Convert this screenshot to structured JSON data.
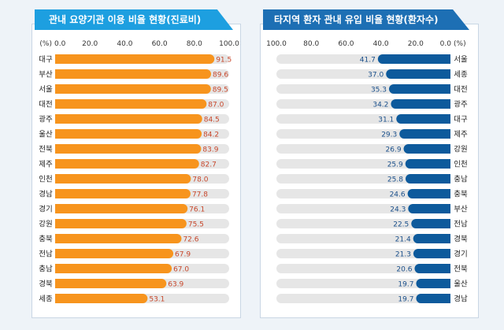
{
  "chart_data": [
    {
      "type": "bar",
      "orientation": "horizontal",
      "title": "관내 요양기관 이용 비율 현황(진료비)",
      "unit_label": "(%)",
      "xlim": [
        0,
        100
      ],
      "ticks": [
        "0.0",
        "20.0",
        "40.0",
        "60.0",
        "80.0",
        "100.0"
      ],
      "tick_values": [
        0,
        20,
        40,
        60,
        80,
        100
      ],
      "categories": [
        "대구",
        "부산",
        "서울",
        "대전",
        "광주",
        "울산",
        "전북",
        "제주",
        "인천",
        "경남",
        "경기",
        "강원",
        "충북",
        "전남",
        "충남",
        "경북",
        "세종"
      ],
      "values": [
        91.5,
        89.6,
        89.5,
        87.0,
        84.5,
        84.2,
        83.9,
        82.7,
        78.0,
        77.8,
        76.1,
        75.5,
        72.6,
        67.9,
        67.0,
        63.9,
        53.1
      ],
      "value_labels": [
        "91.5",
        "89.6",
        "89.5",
        "87.0",
        "84.5",
        "84.2",
        "83.9",
        "82.7",
        "78.0",
        "77.8",
        "76.1",
        "75.5",
        "72.6",
        "67.9",
        "67.0",
        "63.9",
        "53.1"
      ],
      "bar_color": "#f7941d",
      "track_color": "#e6e6e6",
      "label_color": "#c7462a"
    },
    {
      "type": "bar",
      "orientation": "horizontal",
      "direction": "right-to-left",
      "title": "타지역 환자 관내 유입 비율 현황(환자수)",
      "unit_label": "(%)",
      "xlim": [
        0,
        100
      ],
      "ticks": [
        "100.0",
        "80.0",
        "60.0",
        "40.0",
        "20.0",
        "0.0"
      ],
      "tick_values": [
        100,
        80,
        60,
        40,
        20,
        0
      ],
      "categories": [
        "서울",
        "세종",
        "대전",
        "광주",
        "대구",
        "제주",
        "강원",
        "인천",
        "충남",
        "충북",
        "부산",
        "전남",
        "경북",
        "경기",
        "전북",
        "울산",
        "경남"
      ],
      "values": [
        41.7,
        37.0,
        35.3,
        34.2,
        31.1,
        29.3,
        26.9,
        25.9,
        25.8,
        24.6,
        24.3,
        22.5,
        21.4,
        21.3,
        20.6,
        19.7,
        19.7
      ],
      "value_labels": [
        "41.7",
        "37.0",
        "35.3",
        "34.2",
        "31.1",
        "29.3",
        "26.9",
        "25.9",
        "25.8",
        "24.6",
        "24.3",
        "22.5",
        "21.4",
        "21.3",
        "20.6",
        "19.7",
        "19.7"
      ],
      "bar_color": "#0d5a9c",
      "track_color": "#e6e6e6",
      "label_color": "#1a4f8a"
    }
  ]
}
